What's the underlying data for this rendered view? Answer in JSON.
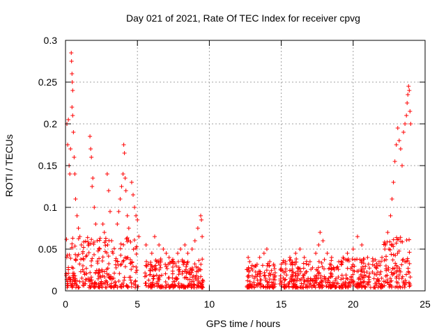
{
  "chart_data": {
    "type": "scatter",
    "title": "Day 021 of 2021, Rate Of TEC Index for receiver cpvg",
    "xlabel": "GPS time / hours",
    "ylabel": "ROTI / TECUs",
    "xlim": [
      0,
      25
    ],
    "ylim": [
      0,
      0.3
    ],
    "x_ticks": [
      0,
      5,
      10,
      15,
      20,
      25
    ],
    "x_tick_labels": [
      "0",
      "5",
      "10",
      "15",
      "20",
      "25"
    ],
    "y_ticks": [
      0,
      0.05,
      0.1,
      0.15,
      0.2,
      0.25,
      0.3
    ],
    "y_tick_labels": [
      "0",
      "0.05",
      "0.1",
      "0.15",
      "0.2",
      "0.25",
      "0.3"
    ],
    "grid": true,
    "marker": "+",
    "marker_color": "#ff0000",
    "series": [
      {
        "name": "ROTI",
        "description_note": "dense clusters; approximate points",
        "points": [
          [
            0.1,
            0.2
          ],
          [
            0.15,
            0.175
          ],
          [
            0.2,
            0.205
          ],
          [
            0.25,
            0.15
          ],
          [
            0.3,
            0.14
          ],
          [
            0.35,
            0.17
          ],
          [
            0.4,
            0.285
          ],
          [
            0.42,
            0.275
          ],
          [
            0.45,
            0.26
          ],
          [
            0.47,
            0.25
          ],
          [
            0.5,
            0.24
          ],
          [
            0.45,
            0.22
          ],
          [
            0.5,
            0.21
          ],
          [
            0.55,
            0.19
          ],
          [
            0.6,
            0.16
          ],
          [
            0.65,
            0.14
          ],
          [
            0.7,
            0.11
          ],
          [
            0.8,
            0.09
          ],
          [
            0.9,
            0.075
          ],
          [
            1.0,
            0.065
          ],
          [
            1.1,
            0.055
          ],
          [
            1.2,
            0.045
          ],
          [
            1.7,
            0.185
          ],
          [
            1.75,
            0.17
          ],
          [
            1.8,
            0.16
          ],
          [
            1.9,
            0.135
          ],
          [
            1.85,
            0.125
          ],
          [
            2.0,
            0.1
          ],
          [
            2.1,
            0.08
          ],
          [
            2.2,
            0.06
          ],
          [
            2.6,
            0.08
          ],
          [
            2.7,
            0.07
          ],
          [
            2.8,
            0.06
          ],
          [
            2.9,
            0.14
          ],
          [
            3.0,
            0.12
          ],
          [
            3.1,
            0.095
          ],
          [
            3.2,
            0.06
          ],
          [
            3.3,
            0.045
          ],
          [
            3.6,
            0.08
          ],
          [
            3.7,
            0.095
          ],
          [
            3.8,
            0.11
          ],
          [
            3.9,
            0.125
          ],
          [
            4.0,
            0.14
          ],
          [
            4.05,
            0.175
          ],
          [
            4.1,
            0.165
          ],
          [
            4.15,
            0.135
          ],
          [
            4.2,
            0.12
          ],
          [
            4.3,
            0.09
          ],
          [
            4.4,
            0.075
          ],
          [
            4.6,
            0.13
          ],
          [
            4.7,
            0.115
          ],
          [
            4.8,
            0.1
          ],
          [
            4.9,
            0.09
          ],
          [
            5.0,
            0.085
          ],
          [
            5.1,
            0.065
          ],
          [
            5.6,
            0.055
          ],
          [
            6.0,
            0.045
          ],
          [
            6.2,
            0.065
          ],
          [
            6.5,
            0.055
          ],
          [
            6.8,
            0.05
          ],
          [
            7.0,
            0.045
          ],
          [
            7.2,
            0.04
          ],
          [
            7.5,
            0.035
          ],
          [
            7.8,
            0.045
          ],
          [
            8.0,
            0.05
          ],
          [
            8.3,
            0.055
          ],
          [
            8.5,
            0.045
          ],
          [
            8.8,
            0.05
          ],
          [
            9.0,
            0.06
          ],
          [
            9.2,
            0.075
          ],
          [
            9.4,
            0.09
          ],
          [
            9.45,
            0.085
          ],
          [
            9.5,
            0.065
          ],
          [
            12.7,
            0.04
          ],
          [
            12.8,
            0.035
          ],
          [
            13.0,
            0.025
          ],
          [
            13.2,
            0.03
          ],
          [
            13.5,
            0.04
          ],
          [
            13.8,
            0.045
          ],
          [
            14.0,
            0.05
          ],
          [
            14.2,
            0.035
          ],
          [
            14.5,
            0.03
          ],
          [
            15.0,
            0.025
          ],
          [
            15.3,
            0.035
          ],
          [
            15.6,
            0.04
          ],
          [
            16.0,
            0.045
          ],
          [
            16.3,
            0.05
          ],
          [
            16.6,
            0.04
          ],
          [
            17.0,
            0.035
          ],
          [
            17.4,
            0.045
          ],
          [
            17.6,
            0.055
          ],
          [
            17.7,
            0.07
          ],
          [
            17.9,
            0.06
          ],
          [
            18.2,
            0.045
          ],
          [
            18.5,
            0.04
          ],
          [
            19.0,
            0.035
          ],
          [
            19.3,
            0.04
          ],
          [
            19.6,
            0.045
          ],
          [
            20.0,
            0.05
          ],
          [
            20.3,
            0.065
          ],
          [
            20.6,
            0.055
          ],
          [
            21.0,
            0.04
          ],
          [
            21.5,
            0.03
          ],
          [
            21.8,
            0.035
          ],
          [
            22.0,
            0.04
          ],
          [
            22.2,
            0.05
          ],
          [
            22.4,
            0.07
          ],
          [
            22.6,
            0.09
          ],
          [
            22.7,
            0.11
          ],
          [
            22.8,
            0.13
          ],
          [
            22.9,
            0.155
          ],
          [
            23.0,
            0.175
          ],
          [
            23.1,
            0.195
          ],
          [
            23.2,
            0.18
          ],
          [
            23.3,
            0.17
          ],
          [
            23.4,
            0.15
          ],
          [
            23.5,
            0.19
          ],
          [
            23.6,
            0.2
          ],
          [
            23.7,
            0.21
          ],
          [
            23.75,
            0.225
          ],
          [
            23.8,
            0.235
          ],
          [
            23.85,
            0.245
          ],
          [
            23.9,
            0.24
          ],
          [
            23.95,
            0.215
          ],
          [
            24.0,
            0.2
          ]
        ]
      }
    ]
  }
}
